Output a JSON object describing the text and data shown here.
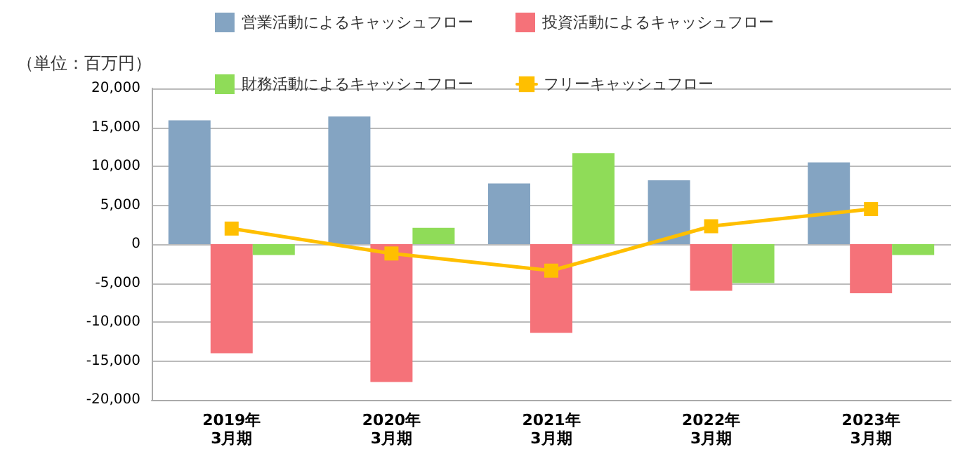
{
  "chart_data": {
    "type": "bar",
    "ylabel": "（単位：百万円）",
    "categories": [
      "2019年\n3月期",
      "2020年\n3月期",
      "2021年\n3月期",
      "2022年\n3月期",
      "2023年\n3月期"
    ],
    "series": [
      {
        "name": "営業活動によるキャッシュフロー",
        "color": "#84a4c2",
        "values": [
          15900,
          16400,
          7800,
          8200,
          10500
        ]
      },
      {
        "name": "投資活動によるキャッシュフロー",
        "color": "#f57279",
        "values": [
          -14000,
          -17700,
          -11400,
          -6000,
          -6300
        ]
      },
      {
        "name": "財務活動によるキャッシュフロー",
        "color": "#8fdc58",
        "values": [
          -1400,
          2100,
          11700,
          -5000,
          -1400
        ]
      },
      {
        "name": "フリーキャッシュフロー",
        "type": "line",
        "color": "#ffbf00",
        "marker": "square",
        "values": [
          2000,
          -1200,
          -3400,
          2300,
          4500
        ]
      }
    ],
    "ylim": [
      -20000,
      20000
    ],
    "yticks": [
      {
        "value": -20000,
        "label": "-20,000"
      },
      {
        "value": -15000,
        "label": "-15,000"
      },
      {
        "value": -10000,
        "label": "-10,000"
      },
      {
        "value": -5000,
        "label": "-5,000"
      },
      0,
      {
        "value": 5000,
        "label": "5,000"
      },
      {
        "value": 10000,
        "label": "10,000"
      },
      {
        "value": 15000,
        "label": "15,000"
      },
      {
        "value": 20000,
        "label": "20,000"
      }
    ],
    "grid": "y",
    "legend": "top"
  }
}
